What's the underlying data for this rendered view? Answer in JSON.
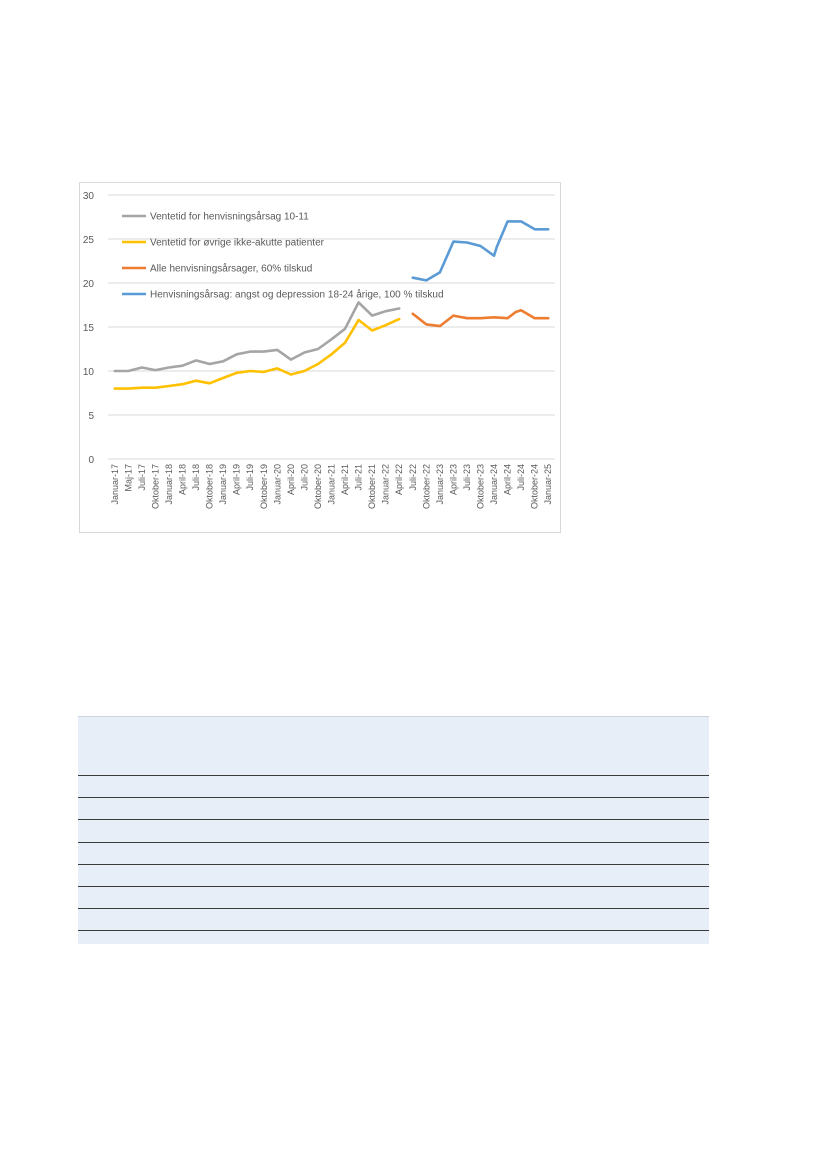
{
  "chart_data": {
    "type": "line",
    "ylim": [
      0,
      30
    ],
    "yticks": [
      0,
      5,
      10,
      15,
      20,
      25,
      30
    ],
    "grid": true,
    "legend_placement": "top-left",
    "x_labels": [
      "Januar-17",
      "Maj-17",
      "Juli-17",
      "Oktober-17",
      "Januar-18",
      "April-18",
      "Juli-18",
      "Oktober-18",
      "Januar-19",
      "April-19",
      "Juli-19",
      "Oktober-19",
      "Januar-20",
      "April-20",
      "Juli-20",
      "Oktober-20",
      "Januar-21",
      "April-21",
      "Juli-21",
      "Oktober-21",
      "Januar-22",
      "April-22",
      "Juli-22",
      "Oktober-22",
      "Januar-23",
      "April-23",
      "Juli-23",
      "Oktober-23",
      "Januar-24",
      "April-24",
      "Juli-24",
      "Oktober-24",
      "Januar-25"
    ],
    "series": [
      {
        "name": "Ventetid for henvisningsårsag 10-11",
        "color": "#a5a5a5",
        "points": [
          [
            0,
            10.0
          ],
          [
            1,
            10.0
          ],
          [
            2,
            10.4
          ],
          [
            3,
            10.1
          ],
          [
            4,
            10.4
          ],
          [
            5,
            10.6
          ],
          [
            6,
            11.2
          ],
          [
            7,
            10.8
          ],
          [
            8,
            11.1
          ],
          [
            9,
            11.9
          ],
          [
            10,
            12.2
          ],
          [
            11,
            12.2
          ],
          [
            12,
            12.4
          ],
          [
            13,
            11.3
          ],
          [
            14,
            12.1
          ],
          [
            15,
            12.5
          ],
          [
            16,
            13.6
          ],
          [
            17,
            14.8
          ],
          [
            18,
            17.8
          ],
          [
            19,
            16.3
          ],
          [
            20,
            16.8
          ],
          [
            21,
            17.1
          ]
        ]
      },
      {
        "name": "Ventetid for øvrige ikke-akutte patienter",
        "color": "#ffc000",
        "points": [
          [
            0,
            8.0
          ],
          [
            1,
            8.0
          ],
          [
            2,
            8.1
          ],
          [
            3,
            8.1
          ],
          [
            4,
            8.3
          ],
          [
            5,
            8.5
          ],
          [
            6,
            8.9
          ],
          [
            7,
            8.6
          ],
          [
            8,
            9.2
          ],
          [
            9,
            9.8
          ],
          [
            10,
            10.0
          ],
          [
            11,
            9.9
          ],
          [
            12,
            10.3
          ],
          [
            13,
            9.6
          ],
          [
            14,
            10.0
          ],
          [
            15,
            10.8
          ],
          [
            16,
            11.9
          ],
          [
            17,
            13.2
          ],
          [
            18,
            15.8
          ],
          [
            19,
            14.6
          ],
          [
            20,
            15.2
          ],
          [
            21,
            15.9
          ]
        ]
      },
      {
        "name": "Alle henvisningsårsager, 60% tilskud",
        "color": "#ed7d31",
        "points": [
          [
            22,
            16.5
          ],
          [
            23,
            15.3
          ],
          [
            24,
            15.1
          ],
          [
            25,
            16.3
          ],
          [
            26,
            16.0
          ],
          [
            27,
            16.0
          ],
          [
            28,
            16.1
          ],
          [
            29,
            16.0
          ],
          [
            29.6,
            16.7
          ],
          [
            30,
            16.9
          ],
          [
            31,
            16.0
          ],
          [
            32,
            16.0
          ]
        ]
      },
      {
        "name": "Henvisningsårsag: angst og depression 18-24 årige,  100 % tilskud",
        "color": "#5b9bd5",
        "points": [
          [
            22,
            20.6
          ],
          [
            23,
            20.3
          ],
          [
            24,
            21.2
          ],
          [
            25,
            24.7
          ],
          [
            26,
            24.6
          ],
          [
            27,
            24.2
          ],
          [
            28,
            23.1
          ],
          [
            28.2,
            24.1
          ],
          [
            29,
            27.0
          ],
          [
            30,
            27.0
          ],
          [
            31,
            26.1
          ],
          [
            32,
            26.1
          ]
        ]
      }
    ]
  }
}
